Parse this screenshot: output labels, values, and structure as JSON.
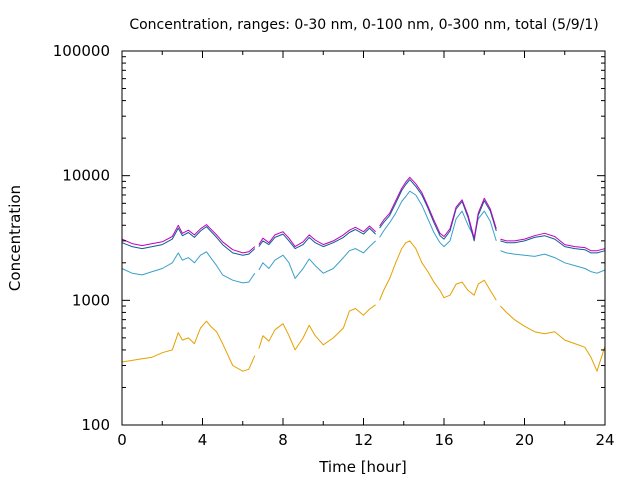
{
  "chart_data": {
    "type": "line",
    "title": "Concentration, ranges: 0-30 nm, 0-100 nm, 0-300 nm, total (5/9/1)",
    "xlabel": "Time [hour]",
    "ylabel": "Concentration",
    "xlim": [
      0,
      24
    ],
    "ylim": [
      100,
      100000
    ],
    "yscale": "log",
    "grid": false,
    "legend": "none",
    "x_ticks": [
      0,
      4,
      8,
      12,
      16,
      20,
      24
    ],
    "x_tick_labels": [
      "0",
      "4",
      "8",
      "12",
      "16",
      "20",
      "24"
    ],
    "y_ticks": [
      100,
      1000,
      10000,
      100000
    ],
    "y_tick_labels": [
      "100",
      "1000",
      "10000",
      "100000"
    ],
    "gaps": [
      [
        6.6,
        6.8
      ],
      [
        12.6,
        12.8
      ],
      [
        18.6,
        18.8
      ]
    ],
    "series": [
      {
        "color": "#e6a000",
        "x": [
          0,
          0.5,
          1,
          1.5,
          2,
          2.5,
          2.8,
          3.0,
          3.3,
          3.6,
          3.9,
          4.2,
          4.4,
          4.7,
          5.0,
          5.5,
          6.0,
          6.3,
          6.6,
          6.8,
          7.0,
          7.3,
          7.6,
          8.0,
          8.3,
          8.6,
          9.0,
          9.3,
          9.6,
          10.0,
          10.5,
          11.0,
          11.3,
          11.6,
          12.0,
          12.3,
          12.6,
          12.8,
          13.0,
          13.3,
          13.6,
          13.9,
          14.1,
          14.3,
          14.6,
          14.9,
          15.2,
          15.5,
          15.8,
          16.0,
          16.3,
          16.6,
          16.9,
          17.2,
          17.5,
          17.7,
          18.0,
          18.3,
          18.6,
          18.8,
          19.1,
          19.5,
          20.0,
          20.5,
          21.0,
          21.5,
          22.0,
          22.5,
          23.0,
          23.3,
          23.6,
          24.0
        ],
        "values": [
          320,
          330,
          340,
          350,
          380,
          400,
          550,
          480,
          500,
          450,
          600,
          680,
          620,
          560,
          450,
          300,
          270,
          280,
          360,
          410,
          520,
          470,
          580,
          650,
          520,
          400,
          500,
          630,
          520,
          440,
          500,
          600,
          820,
          860,
          760,
          850,
          920,
          1000,
          1200,
          1500,
          2000,
          2600,
          2900,
          3000,
          2600,
          2000,
          1700,
          1400,
          1200,
          1050,
          1100,
          1350,
          1400,
          1200,
          1100,
          1350,
          1450,
          1200,
          1000,
          900,
          800,
          700,
          620,
          560,
          540,
          560,
          480,
          450,
          420,
          350,
          270,
          430
        ]
      },
      {
        "color": "#3aa0c8",
        "x": [
          0,
          0.5,
          1,
          1.5,
          2,
          2.5,
          2.8,
          3.0,
          3.3,
          3.6,
          3.9,
          4.2,
          4.4,
          4.7,
          5.0,
          5.5,
          6.0,
          6.3,
          6.6,
          6.8,
          7.0,
          7.3,
          7.6,
          8.0,
          8.3,
          8.6,
          9.0,
          9.3,
          9.6,
          10.0,
          10.5,
          11.0,
          11.3,
          11.6,
          12.0,
          12.3,
          12.6,
          12.8,
          13.0,
          13.3,
          13.6,
          13.9,
          14.1,
          14.3,
          14.6,
          14.9,
          15.2,
          15.5,
          15.8,
          16.0,
          16.3,
          16.6,
          16.9,
          17.2,
          17.5,
          17.7,
          18.0,
          18.3,
          18.6,
          18.8,
          19.1,
          19.5,
          20.0,
          20.5,
          21.0,
          21.5,
          22.0,
          22.5,
          23.0,
          23.3,
          23.6,
          24.0
        ],
        "values": [
          1800,
          1650,
          1600,
          1700,
          1800,
          2000,
          2400,
          2100,
          2200,
          2000,
          2300,
          2450,
          2200,
          1900,
          1600,
          1450,
          1380,
          1400,
          1650,
          1750,
          2000,
          1800,
          2100,
          2300,
          2000,
          1500,
          1800,
          2150,
          1900,
          1650,
          1800,
          2200,
          2500,
          2600,
          2400,
          2700,
          3000,
          3200,
          3600,
          4200,
          5000,
          6200,
          6800,
          7500,
          7000,
          5800,
          4500,
          3500,
          2900,
          2700,
          3000,
          4500,
          5200,
          4000,
          3200,
          4500,
          5200,
          4300,
          3000,
          2500,
          2400,
          2350,
          2300,
          2250,
          2350,
          2200,
          2000,
          1900,
          1800,
          1700,
          1650,
          1750
        ]
      },
      {
        "color": "#0b5f8e",
        "x": [
          0,
          0.5,
          1,
          1.5,
          2,
          2.5,
          2.8,
          3.0,
          3.3,
          3.6,
          3.9,
          4.2,
          4.4,
          4.7,
          5.0,
          5.5,
          6.0,
          6.3,
          6.6,
          6.8,
          7.0,
          7.3,
          7.6,
          8.0,
          8.3,
          8.6,
          9.0,
          9.3,
          9.6,
          10.0,
          10.5,
          11.0,
          11.3,
          11.6,
          12.0,
          12.3,
          12.6,
          12.8,
          13.0,
          13.3,
          13.6,
          13.9,
          14.1,
          14.3,
          14.6,
          14.9,
          15.2,
          15.5,
          15.8,
          16.0,
          16.3,
          16.6,
          16.9,
          17.2,
          17.5,
          17.7,
          18.0,
          18.3,
          18.6,
          18.8,
          19.1,
          19.5,
          20.0,
          20.5,
          21.0,
          21.5,
          22.0,
          22.5,
          23.0,
          23.3,
          23.6,
          24.0
        ],
        "values": [
          2900,
          2700,
          2600,
          2700,
          2800,
          3100,
          3800,
          3300,
          3500,
          3200,
          3600,
          3900,
          3600,
          3200,
          2800,
          2400,
          2300,
          2350,
          2600,
          2700,
          3000,
          2800,
          3200,
          3400,
          3000,
          2600,
          2800,
          3200,
          2900,
          2700,
          2900,
          3200,
          3500,
          3700,
          3400,
          3800,
          3400,
          3800,
          4200,
          4800,
          6000,
          7600,
          8500,
          9300,
          8200,
          7000,
          5500,
          4200,
          3300,
          3100,
          3600,
          5400,
          6200,
          4600,
          3000,
          4800,
          6300,
          5200,
          3600,
          3000,
          2900,
          2900,
          3000,
          3200,
          3300,
          3100,
          2700,
          2600,
          2550,
          2400,
          2400,
          2500
        ]
      },
      {
        "color": "#c000c0",
        "x": [
          0,
          0.5,
          1,
          1.5,
          2,
          2.5,
          2.8,
          3.0,
          3.3,
          3.6,
          3.9,
          4.2,
          4.4,
          4.7,
          5.0,
          5.5,
          6.0,
          6.3,
          6.6,
          6.8,
          7.0,
          7.3,
          7.6,
          8.0,
          8.3,
          8.6,
          9.0,
          9.3,
          9.6,
          10.0,
          10.5,
          11.0,
          11.3,
          11.6,
          12.0,
          12.3,
          12.6,
          12.8,
          13.0,
          13.3,
          13.6,
          13.9,
          14.1,
          14.3,
          14.6,
          14.9,
          15.2,
          15.5,
          15.8,
          16.0,
          16.3,
          16.6,
          16.9,
          17.2,
          17.5,
          17.7,
          18.0,
          18.3,
          18.6,
          18.8,
          19.1,
          19.5,
          20.0,
          20.5,
          21.0,
          21.5,
          22.0,
          22.5,
          23.0,
          23.3,
          23.6,
          24.0
        ],
        "values": [
          3100,
          2850,
          2750,
          2850,
          2950,
          3250,
          4000,
          3450,
          3650,
          3350,
          3750,
          4050,
          3750,
          3350,
          2950,
          2550,
          2400,
          2450,
          2700,
          2800,
          3150,
          2900,
          3350,
          3550,
          3150,
          2700,
          2950,
          3350,
          3050,
          2800,
          3000,
          3350,
          3650,
          3850,
          3550,
          3950,
          3550,
          3950,
          4400,
          5000,
          6300,
          7900,
          8900,
          9700,
          8600,
          7300,
          5700,
          4400,
          3450,
          3250,
          3750,
          5600,
          6400,
          4800,
          3150,
          5000,
          6600,
          5400,
          3750,
          3100,
          3000,
          3000,
          3100,
          3300,
          3450,
          3250,
          2800,
          2700,
          2650,
          2500,
          2500,
          2600
        ]
      }
    ]
  }
}
